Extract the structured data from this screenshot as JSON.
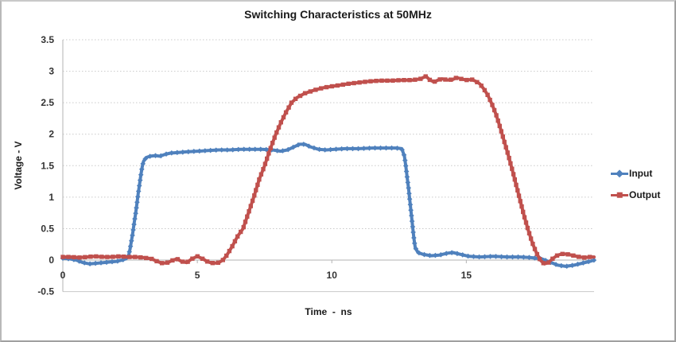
{
  "chart": {
    "title": "Switching Characteristics at 50MHz",
    "x_axis_title": "Time  -  ns",
    "y_axis_title": "Voltage - V",
    "legend": [
      {
        "label": "Input",
        "color": "#4F81BD",
        "marker": "diamond"
      },
      {
        "label": "Output",
        "color": "#C0504D",
        "marker": "square"
      }
    ]
  },
  "chart_data": {
    "type": "line",
    "title": "Switching Characteristics at 50MHz",
    "xlabel": "Time  -  ns",
    "ylabel": "Voltage - V",
    "xlim": [
      0,
      19.75
    ],
    "ylim": [
      -0.5,
      3.5
    ],
    "x_ticks": [
      0,
      5,
      10,
      15
    ],
    "y_ticks": [
      3.5,
      3,
      2.5,
      2,
      1.5,
      1,
      0.5,
      0,
      -0.5
    ],
    "grid": "horizontal-dotted",
    "legend_position": "right",
    "colors": {
      "grid": "#c9c9c9",
      "axis": "#b3b3b3",
      "text": "#333333"
    },
    "series": [
      {
        "name": "Input",
        "color": "#4F81BD",
        "marker": "diamond",
        "points": [
          [
            0,
            0.03
          ],
          [
            0.25,
            0.02
          ],
          [
            0.5,
            0.0
          ],
          [
            0.75,
            -0.04
          ],
          [
            1.0,
            -0.06
          ],
          [
            1.25,
            -0.05
          ],
          [
            1.5,
            -0.04
          ],
          [
            1.75,
            -0.03
          ],
          [
            2.0,
            -0.02
          ],
          [
            2.2,
            0.0
          ],
          [
            2.35,
            0.02
          ],
          [
            2.45,
            0.08
          ],
          [
            2.5,
            0.18
          ],
          [
            2.55,
            0.3
          ],
          [
            2.6,
            0.43
          ],
          [
            2.65,
            0.58
          ],
          [
            2.7,
            0.72
          ],
          [
            2.75,
            0.88
          ],
          [
            2.8,
            1.05
          ],
          [
            2.85,
            1.2
          ],
          [
            2.9,
            1.35
          ],
          [
            2.95,
            1.48
          ],
          [
            3.0,
            1.57
          ],
          [
            3.1,
            1.63
          ],
          [
            3.25,
            1.65
          ],
          [
            3.45,
            1.66
          ],
          [
            3.6,
            1.65
          ],
          [
            3.8,
            1.68
          ],
          [
            4.0,
            1.7
          ],
          [
            4.3,
            1.71
          ],
          [
            4.6,
            1.72
          ],
          [
            5.0,
            1.73
          ],
          [
            5.4,
            1.74
          ],
          [
            5.8,
            1.75
          ],
          [
            6.2,
            1.75
          ],
          [
            6.6,
            1.76
          ],
          [
            7.0,
            1.76
          ],
          [
            7.4,
            1.76
          ],
          [
            7.8,
            1.75
          ],
          [
            8.1,
            1.73
          ],
          [
            8.35,
            1.75
          ],
          [
            8.6,
            1.8
          ],
          [
            8.8,
            1.84
          ],
          [
            9.0,
            1.84
          ],
          [
            9.2,
            1.8
          ],
          [
            9.5,
            1.76
          ],
          [
            9.8,
            1.75
          ],
          [
            10.1,
            1.76
          ],
          [
            10.5,
            1.77
          ],
          [
            11.0,
            1.77
          ],
          [
            11.5,
            1.78
          ],
          [
            12.0,
            1.78
          ],
          [
            12.4,
            1.78
          ],
          [
            12.6,
            1.77
          ],
          [
            12.7,
            1.65
          ],
          [
            12.75,
            1.5
          ],
          [
            12.8,
            1.32
          ],
          [
            12.85,
            1.15
          ],
          [
            12.9,
            0.95
          ],
          [
            12.95,
            0.75
          ],
          [
            13.0,
            0.55
          ],
          [
            13.05,
            0.35
          ],
          [
            13.1,
            0.2
          ],
          [
            13.2,
            0.12
          ],
          [
            13.4,
            0.09
          ],
          [
            13.7,
            0.07
          ],
          [
            14.0,
            0.08
          ],
          [
            14.3,
            0.11
          ],
          [
            14.5,
            0.12
          ],
          [
            14.8,
            0.09
          ],
          [
            15.1,
            0.06
          ],
          [
            15.5,
            0.05
          ],
          [
            16.0,
            0.06
          ],
          [
            16.5,
            0.05
          ],
          [
            17.0,
            0.05
          ],
          [
            17.4,
            0.04
          ],
          [
            17.8,
            0.02
          ],
          [
            18.1,
            -0.03
          ],
          [
            18.4,
            -0.08
          ],
          [
            18.7,
            -0.1
          ],
          [
            19.0,
            -0.08
          ],
          [
            19.3,
            -0.05
          ],
          [
            19.6,
            -0.02
          ],
          [
            19.75,
            0.0
          ]
        ]
      },
      {
        "name": "Output",
        "color": "#C0504D",
        "marker": "square",
        "points": [
          [
            0,
            0.05
          ],
          [
            0.3,
            0.05
          ],
          [
            0.6,
            0.04
          ],
          [
            0.9,
            0.05
          ],
          [
            1.2,
            0.06
          ],
          [
            1.5,
            0.05
          ],
          [
            1.8,
            0.05
          ],
          [
            2.1,
            0.06
          ],
          [
            2.4,
            0.05
          ],
          [
            2.7,
            0.05
          ],
          [
            3.0,
            0.04
          ],
          [
            3.3,
            0.02
          ],
          [
            3.5,
            -0.02
          ],
          [
            3.7,
            -0.05
          ],
          [
            3.9,
            -0.04
          ],
          [
            4.1,
            0.0
          ],
          [
            4.25,
            0.02
          ],
          [
            4.4,
            -0.02
          ],
          [
            4.6,
            -0.04
          ],
          [
            4.8,
            0.02
          ],
          [
            5.0,
            0.06
          ],
          [
            5.2,
            0.02
          ],
          [
            5.4,
            -0.03
          ],
          [
            5.6,
            -0.05
          ],
          [
            5.8,
            -0.04
          ],
          [
            5.95,
            0.0
          ],
          [
            6.1,
            0.08
          ],
          [
            6.3,
            0.22
          ],
          [
            6.5,
            0.38
          ],
          [
            6.7,
            0.5
          ],
          [
            6.9,
            0.75
          ],
          [
            7.1,
            1.0
          ],
          [
            7.3,
            1.28
          ],
          [
            7.5,
            1.5
          ],
          [
            7.7,
            1.75
          ],
          [
            7.9,
            1.98
          ],
          [
            8.1,
            2.18
          ],
          [
            8.3,
            2.35
          ],
          [
            8.5,
            2.5
          ],
          [
            8.7,
            2.58
          ],
          [
            9.0,
            2.65
          ],
          [
            9.35,
            2.7
          ],
          [
            9.7,
            2.74
          ],
          [
            10.0,
            2.76
          ],
          [
            10.3,
            2.78
          ],
          [
            10.6,
            2.8
          ],
          [
            11.0,
            2.82
          ],
          [
            11.4,
            2.84
          ],
          [
            11.8,
            2.85
          ],
          [
            12.2,
            2.85
          ],
          [
            12.6,
            2.86
          ],
          [
            13.0,
            2.86
          ],
          [
            13.3,
            2.88
          ],
          [
            13.5,
            2.92
          ],
          [
            13.65,
            2.86
          ],
          [
            13.8,
            2.83
          ],
          [
            13.95,
            2.86
          ],
          [
            14.1,
            2.88
          ],
          [
            14.3,
            2.86
          ],
          [
            14.5,
            2.87
          ],
          [
            14.65,
            2.9
          ],
          [
            14.8,
            2.88
          ],
          [
            15.0,
            2.86
          ],
          [
            15.2,
            2.87
          ],
          [
            15.35,
            2.84
          ],
          [
            15.5,
            2.8
          ],
          [
            15.65,
            2.72
          ],
          [
            15.8,
            2.62
          ],
          [
            15.95,
            2.48
          ],
          [
            16.1,
            2.32
          ],
          [
            16.25,
            2.12
          ],
          [
            16.4,
            1.9
          ],
          [
            16.55,
            1.68
          ],
          [
            16.7,
            1.45
          ],
          [
            16.85,
            1.2
          ],
          [
            17.0,
            0.95
          ],
          [
            17.15,
            0.7
          ],
          [
            17.3,
            0.48
          ],
          [
            17.45,
            0.28
          ],
          [
            17.6,
            0.12
          ],
          [
            17.75,
            0.0
          ],
          [
            17.9,
            -0.06
          ],
          [
            18.05,
            -0.04
          ],
          [
            18.2,
            0.02
          ],
          [
            18.4,
            0.08
          ],
          [
            18.6,
            0.1
          ],
          [
            18.8,
            0.09
          ],
          [
            19.0,
            0.07
          ],
          [
            19.2,
            0.05
          ],
          [
            19.4,
            0.04
          ],
          [
            19.6,
            0.05
          ],
          [
            19.75,
            0.05
          ]
        ]
      }
    ]
  }
}
